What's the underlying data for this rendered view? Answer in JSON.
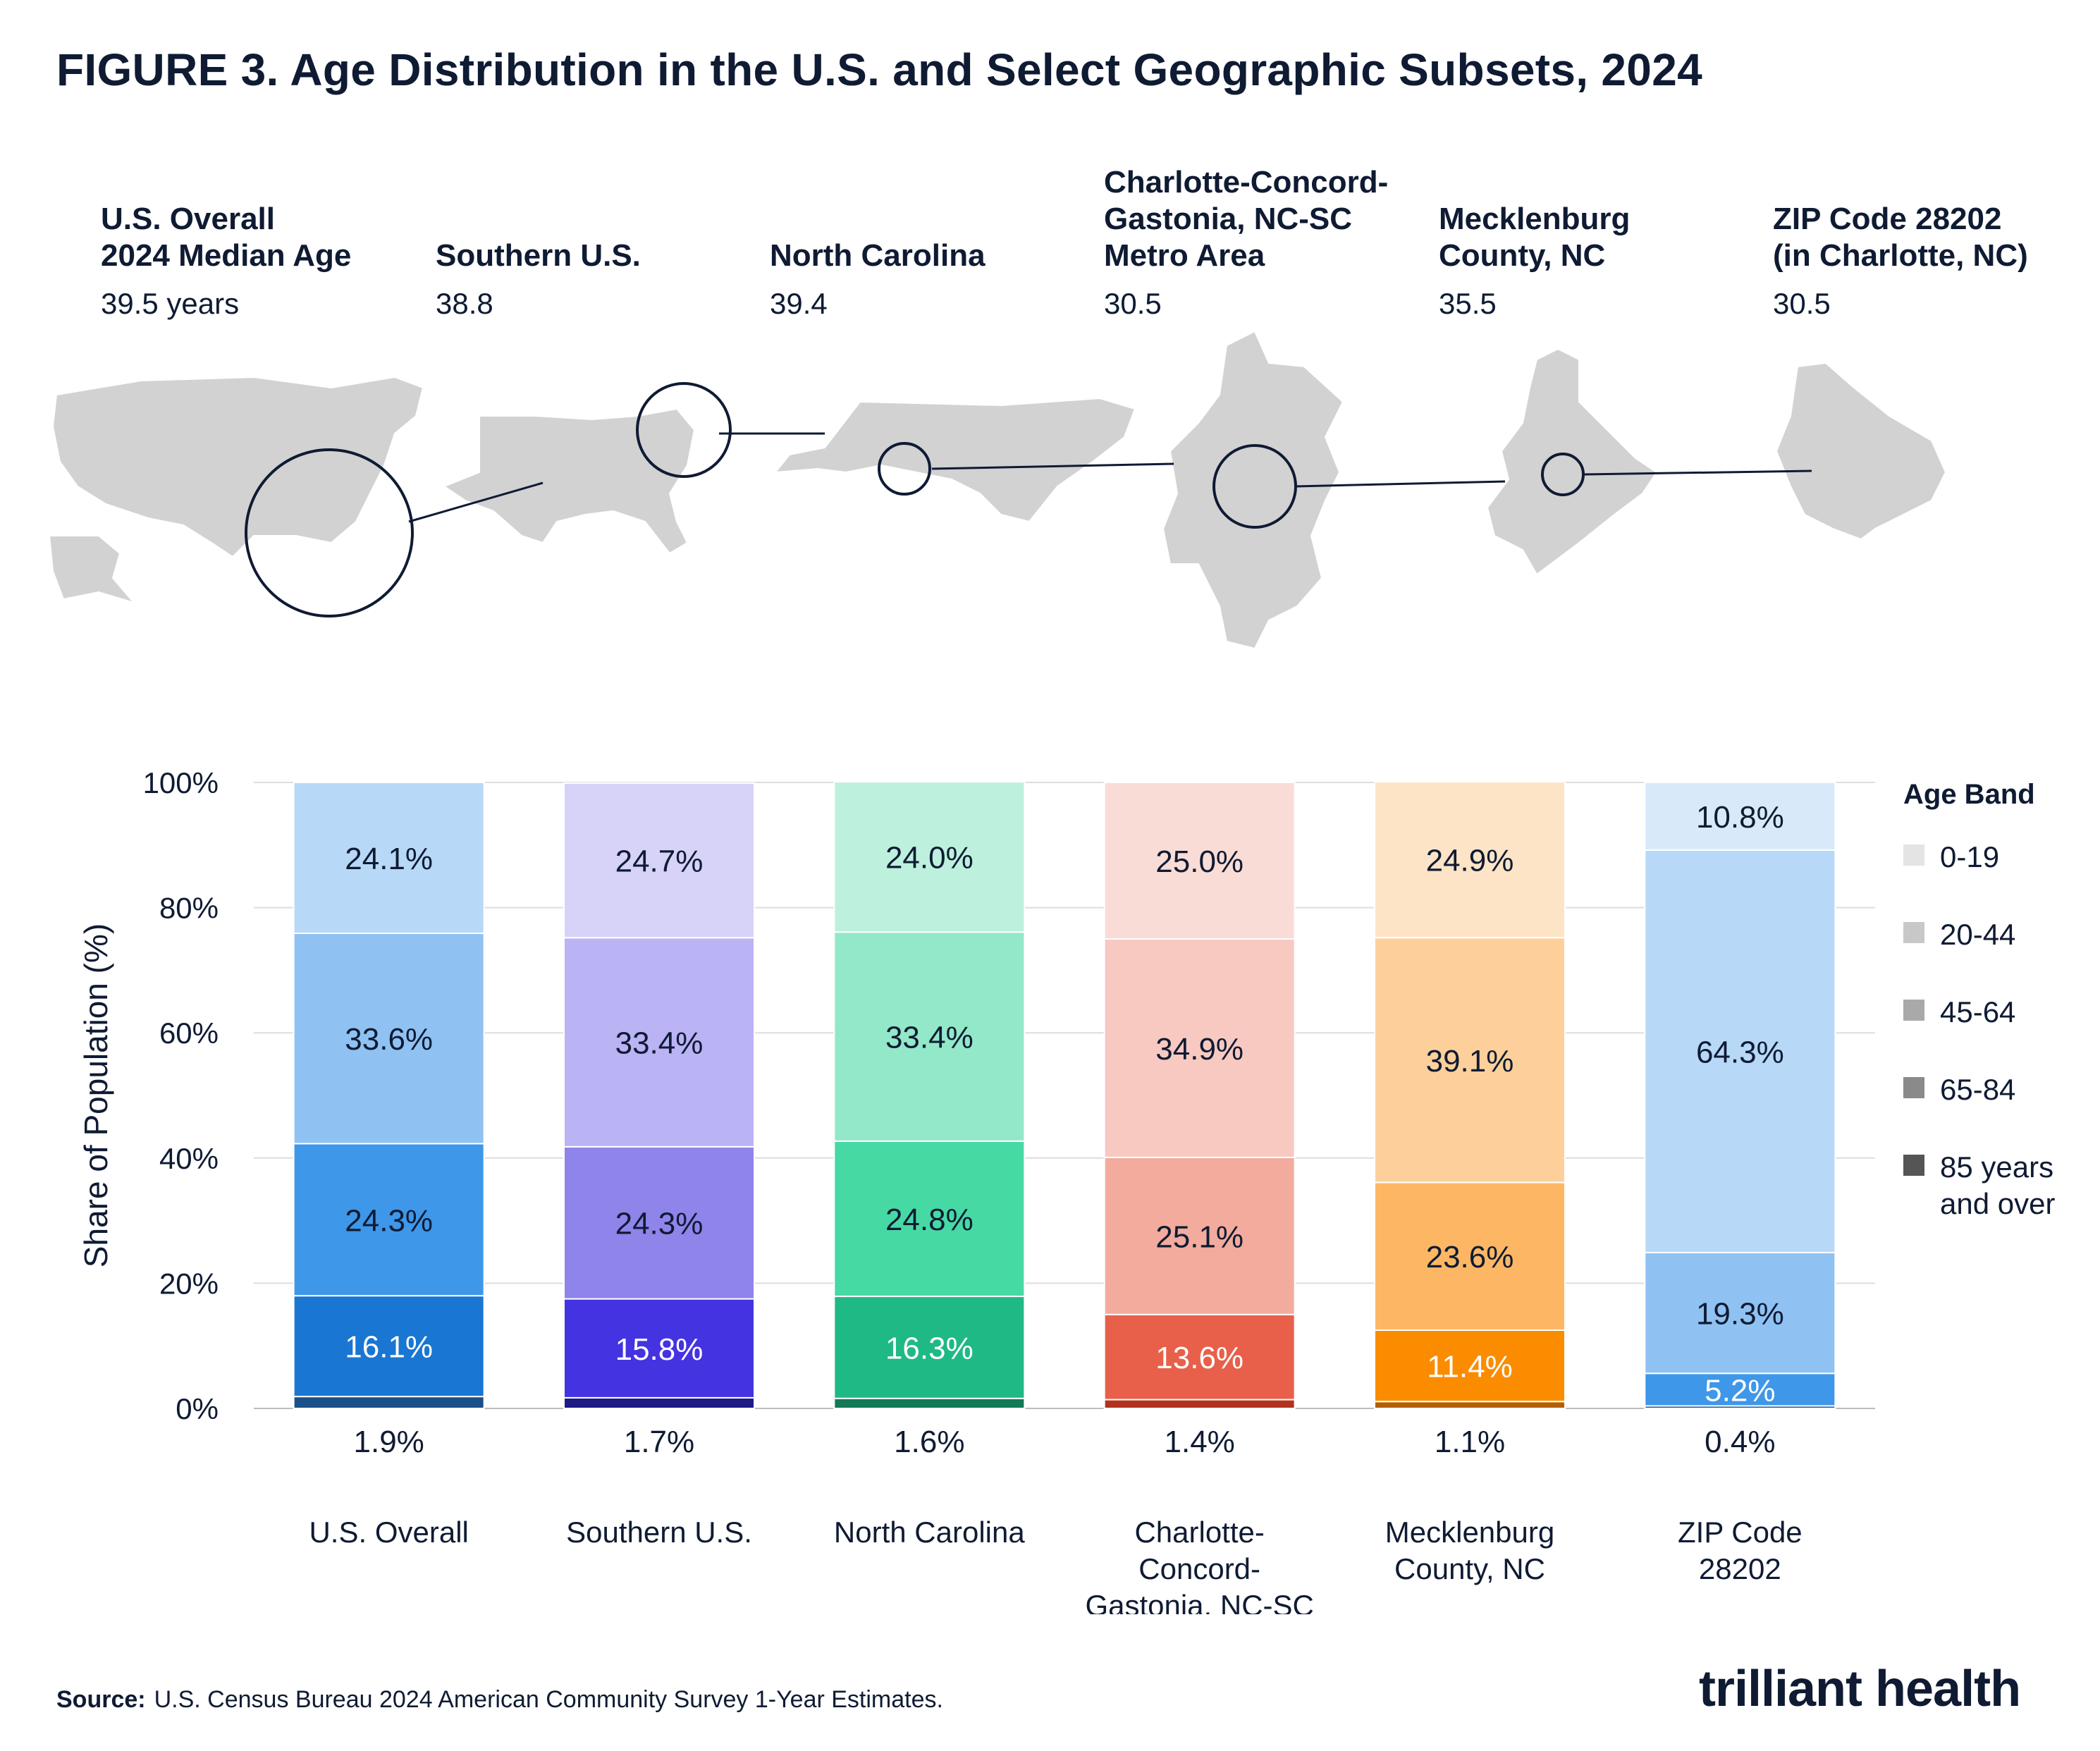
{
  "title": "FIGURE 3. Age Distribution in the U.S. and Select Geographic Subsets, 2024",
  "regions": [
    {
      "name": "U.S. Overall\n2024 Median Age",
      "age": "39.5 years"
    },
    {
      "name": "Southern U.S.",
      "age": "38.8"
    },
    {
      "name": "North Carolina",
      "age": "39.4"
    },
    {
      "name": "Charlotte-Concord-\nGastonia, NC-SC\nMetro Area",
      "age": "30.5"
    },
    {
      "name": "Mecklenburg\nCounty, NC",
      "age": "35.5"
    },
    {
      "name": "ZIP Code 28202\n(in Charlotte, NC)",
      "age": "30.5"
    }
  ],
  "map_icons": [
    "us-map-icon",
    "southern-us-map-icon",
    "north-carolina-map-icon",
    "metro-area-map-icon",
    "mecklenburg-county-map-icon",
    "zip-28202-map-icon"
  ],
  "chart_data": {
    "type": "bar",
    "stacked": true,
    "ylabel": "Share of Population (%)",
    "ylim": [
      0,
      100
    ],
    "yticks": [
      "0%",
      "20%",
      "40%",
      "60%",
      "80%",
      "100%"
    ],
    "categories": [
      "U.S. Overall",
      "Southern U.S.",
      "North Carolina",
      "Charlotte-\nConcord-\nGastonia, NC-SC",
      "Mecklenburg\nCounty, NC",
      "ZIP Code\n28202"
    ],
    "legend_title": "Age Band",
    "legend_position": "right",
    "series": [
      {
        "name": "85 years\nand over",
        "values": [
          1.9,
          1.7,
          1.6,
          1.4,
          1.1,
          0.4
        ],
        "labels": [
          "1.9%",
          "1.7%",
          "1.6%",
          "1.4%",
          "1.1%",
          "0.4%"
        ]
      },
      {
        "name": "65-84",
        "values": [
          16.1,
          15.8,
          16.3,
          13.6,
          11.4,
          5.2
        ],
        "labels": [
          "16.1%",
          "15.8%",
          "16.3%",
          "13.6%",
          "11.4%",
          "5.2%"
        ]
      },
      {
        "name": "45-64",
        "values": [
          24.3,
          24.3,
          24.8,
          25.1,
          23.6,
          19.3
        ],
        "labels": [
          "24.3%",
          "24.3%",
          "24.8%",
          "25.1%",
          "23.6%",
          "19.3%"
        ]
      },
      {
        "name": "20-44",
        "values": [
          33.6,
          33.4,
          33.4,
          34.9,
          39.1,
          64.3
        ],
        "labels": [
          "33.6%",
          "33.4%",
          "33.4%",
          "34.9%",
          "39.1%",
          "64.3%"
        ]
      },
      {
        "name": "0-19",
        "values": [
          24.1,
          24.7,
          24.0,
          25.0,
          24.9,
          10.8
        ],
        "labels": [
          "24.1%",
          "24.7%",
          "24.0%",
          "25.0%",
          "24.9%",
          "10.8%"
        ]
      }
    ],
    "bar_colors": [
      [
        "#1b4f8a",
        "#1976d2",
        "#3e97e8",
        "#8fc2f2",
        "#b7d8f7"
      ],
      [
        "#1e1a86",
        "#4433e0",
        "#8f84ea",
        "#bab3f4",
        "#d6d2f8"
      ],
      [
        "#127a55",
        "#1fb985",
        "#47d9a4",
        "#92e8c8",
        "#bdf1dd"
      ],
      [
        "#b2321f",
        "#e8604a",
        "#f2ab9c",
        "#f7c9c1",
        "#fadcd6"
      ],
      [
        "#b35f00",
        "#fb8c00",
        "#fdb764",
        "#fdd09b",
        "#fde4c6"
      ],
      [
        "#155aa3",
        "#3e97e8",
        "#8fc2f2",
        "#b7d8f7",
        "#d8eaf9"
      ]
    ],
    "label_colors": [
      [
        "#0f1b33",
        "#ffffff",
        "#0f1b33",
        "#0f1b33",
        "#0f1b33"
      ],
      [
        "#0f1b33",
        "#ffffff",
        "#0f1b33",
        "#0f1b33",
        "#0f1b33"
      ],
      [
        "#0f1b33",
        "#ffffff",
        "#0f1b33",
        "#0f1b33",
        "#0f1b33"
      ],
      [
        "#0f1b33",
        "#ffffff",
        "#0f1b33",
        "#0f1b33",
        "#0f1b33"
      ],
      [
        "#0f1b33",
        "#ffffff",
        "#0f1b33",
        "#0f1b33",
        "#0f1b33"
      ],
      [
        "#0f1b33",
        "#ffffff",
        "#0f1b33",
        "#0f1b33",
        "#0f1b33"
      ]
    ],
    "legend_colors": [
      "#e4e4e4",
      "#c8c8c8",
      "#a9a9a9",
      "#8a8a8a",
      "#555555"
    ],
    "legend_order": [
      4,
      3,
      2,
      1,
      0
    ]
  },
  "source": {
    "label": "Source:",
    "text": "U.S. Census Bureau 2024 American Community Survey 1-Year Estimates."
  },
  "logo": "trilliant health"
}
